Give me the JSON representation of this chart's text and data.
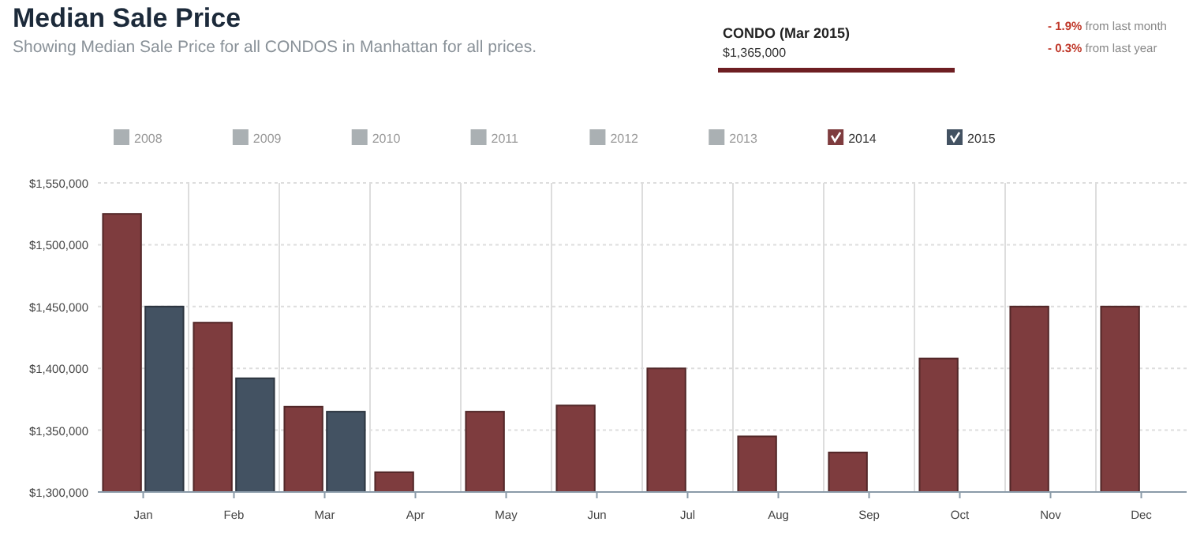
{
  "chart_data": {
    "type": "bar",
    "title": "Median Sale Price",
    "subtitle": "Showing Median Sale Price for all CONDOS in Manhattan for all prices.",
    "annotations": [
      "CONDO  (Mar 2015)",
      "$1,365,000",
      "- 1.9% from last month",
      "- 0.3% from last year"
    ],
    "categories": [
      "Jan",
      "Feb",
      "Mar",
      "Apr",
      "May",
      "Jun",
      "Jul",
      "Aug",
      "Sep",
      "Oct",
      "Nov",
      "Dec"
    ],
    "series": [
      {
        "name": "2008",
        "color": "#aab0b3",
        "values": [
          null,
          null,
          null,
          null,
          null,
          null,
          null,
          null,
          null,
          null,
          null,
          null
        ]
      },
      {
        "name": "2009",
        "color": "#aab0b3",
        "values": [
          null,
          null,
          null,
          null,
          null,
          null,
          null,
          null,
          null,
          null,
          null,
          null
        ]
      },
      {
        "name": "2010",
        "color": "#aab0b3",
        "values": [
          null,
          null,
          null,
          null,
          null,
          null,
          null,
          null,
          null,
          null,
          null,
          null
        ]
      },
      {
        "name": "2011",
        "color": "#aab0b3",
        "values": [
          null,
          null,
          null,
          null,
          null,
          null,
          null,
          null,
          null,
          null,
          null,
          null
        ]
      },
      {
        "name": "2012",
        "color": "#aab0b3",
        "values": [
          null,
          null,
          null,
          null,
          null,
          null,
          null,
          null,
          null,
          null,
          null,
          null
        ]
      },
      {
        "name": "2013",
        "color": "#aab0b3",
        "values": [
          null,
          null,
          null,
          null,
          null,
          null,
          null,
          null,
          null,
          null,
          null,
          null
        ]
      },
      {
        "name": "2014",
        "color": "#7e3c3e",
        "values": [
          1525000,
          1437000,
          1369000,
          1316000,
          1365000,
          1370000,
          1400000,
          1345000,
          1332000,
          1408000,
          1450000,
          1450000
        ]
      },
      {
        "name": "2015",
        "color": "#435262",
        "values": [
          1450000,
          1392000,
          1365000,
          null,
          null,
          null,
          null,
          null,
          null,
          null,
          null,
          null
        ]
      }
    ],
    "ylim": [
      1300000,
      1550000
    ],
    "yticks": [
      {
        "value": 1300000,
        "label": "$1,300,000"
      },
      {
        "value": 1350000,
        "label": "$1,350,000"
      },
      {
        "value": 1400000,
        "label": "$1,400,000"
      },
      {
        "value": 1450000,
        "label": "$1,450,000"
      },
      {
        "value": 1500000,
        "label": "$1,500,000"
      },
      {
        "value": 1550000,
        "label": "$1,550,000"
      }
    ],
    "grid": true,
    "legend": "top"
  }
}
